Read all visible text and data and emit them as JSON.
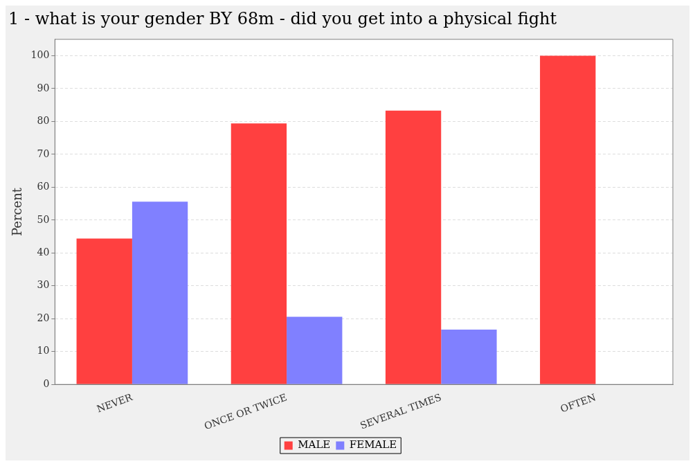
{
  "chart_data": {
    "type": "bar",
    "title": "1 - what is your gender BY 68m - did you get into a physical fight",
    "ylabel": "Percent",
    "categories": [
      "NEVER",
      "ONCE OR TWICE",
      "SEVERAL TIMES",
      "OFTEN"
    ],
    "series": [
      {
        "name": "MALE",
        "color": "#ff4040",
        "values": [
          44.4,
          79.4,
          83.3,
          100
        ]
      },
      {
        "name": "FEMALE",
        "color": "#8080ff",
        "values": [
          55.6,
          20.6,
          16.7,
          0
        ]
      }
    ],
    "ylim": [
      0,
      105
    ],
    "yticks": [
      0,
      10,
      20,
      30,
      40,
      50,
      60,
      70,
      80,
      90,
      100
    ],
    "grid": "y",
    "legend": "bottom"
  }
}
